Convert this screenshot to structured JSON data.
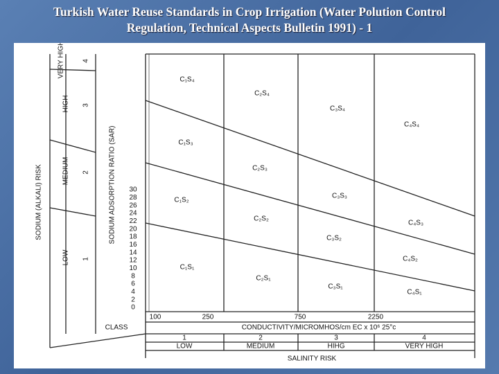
{
  "title_line1": "Turkish Water Reuse Standards in Crop Irrigation (Water Polution Control",
  "title_line2": "Regulation, Technical Aspects Bulletin  1991) - 1",
  "diagram": {
    "risk_axis_label": "SODIUM (ALKALI) RISK",
    "sar_axis_label": "SODIUM ADSORPTION RATIO (SAR)",
    "sodium_classes": [
      {
        "label": "LOW",
        "class": "1"
      },
      {
        "label": "MEDIUM",
        "class": "2"
      },
      {
        "label": "HIGH",
        "class": "3"
      },
      {
        "label": "VERY HIGH",
        "class": "4"
      }
    ],
    "sar_ticks": [
      "0",
      "2",
      "4",
      "6",
      "8",
      "10",
      "12",
      "14",
      "16",
      "18",
      "20",
      "22",
      "24",
      "26",
      "28",
      "30"
    ],
    "conductivity_ticks": [
      "100",
      "250",
      "750",
      "2250"
    ],
    "cells": [
      "C₁S₄",
      "C₂S₄",
      "C₃S₄",
      "C₄S₄",
      "C₁S₃",
      "C₂S₃",
      "C₃S₃",
      "C₄S₃",
      "C₁S₂",
      "C₂S₂",
      "C₃S₂",
      "C₄S₂",
      "C₁S₁",
      "C₂S₁",
      "C₃S₁",
      "C₄S₁"
    ],
    "class_label": "CLASS",
    "conductivity_label": "CONDUCTIVITY/MICROMHOS/cm  EC x 10⁶ 25°c",
    "salinity_classes": [
      {
        "class": "1",
        "label": "LOW"
      },
      {
        "class": "2",
        "label": "MEDIUM"
      },
      {
        "class": "3",
        "label": "HIHG"
      },
      {
        "class": "4",
        "label": "VERY HIGH"
      }
    ],
    "salinity_label": "SALINITY RISK"
  }
}
